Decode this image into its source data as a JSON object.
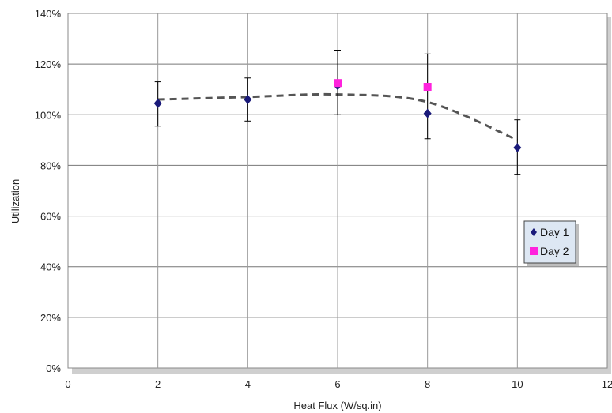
{
  "chart_data": {
    "type": "scatter",
    "xlabel": "Heat Flux (W/sq.in)",
    "ylabel": "Utilization",
    "xlim": [
      0,
      12
    ],
    "ylim": [
      0,
      1.4
    ],
    "x_ticks": [
      0,
      2,
      4,
      6,
      8,
      10,
      12
    ],
    "y_ticks": [
      0,
      0.2,
      0.4,
      0.6,
      0.8,
      1.0,
      1.2,
      1.4
    ],
    "x_tick_labels": [
      "0",
      "2",
      "4",
      "6",
      "8",
      "10",
      "12"
    ],
    "y_tick_labels": [
      "0%",
      "20%",
      "40%",
      "60%",
      "80%",
      "100%",
      "120%",
      "140%"
    ],
    "grid": true,
    "legend_position": "right",
    "series": [
      {
        "name": "Day 1",
        "marker": "diamond",
        "color": "#1a1a7a",
        "points": [
          {
            "x": 2,
            "y": 1.045,
            "err_low": 0.955,
            "err_high": 1.13
          },
          {
            "x": 4,
            "y": 1.06,
            "err_low": 0.975,
            "err_high": 1.145
          },
          {
            "x": 6,
            "y": 1.115,
            "err_low": 1.0,
            "err_high": 1.255
          },
          {
            "x": 8,
            "y": 1.005,
            "err_low": 0.905,
            "err_high": 1.24
          },
          {
            "x": 10,
            "y": 0.87,
            "err_low": 0.765,
            "err_high": 0.98
          }
        ]
      },
      {
        "name": "Day 2",
        "marker": "square",
        "color": "#ff22dd",
        "points": [
          {
            "x": 6,
            "y": 1.125
          },
          {
            "x": 8,
            "y": 1.11
          }
        ]
      }
    ],
    "trendline": {
      "style": "dashed",
      "color": "#555555",
      "points": [
        {
          "x": 2,
          "y": 1.06
        },
        {
          "x": 4,
          "y": 1.07
        },
        {
          "x": 6,
          "y": 1.08
        },
        {
          "x": 8,
          "y": 1.05
        },
        {
          "x": 10,
          "y": 0.9
        }
      ]
    }
  }
}
